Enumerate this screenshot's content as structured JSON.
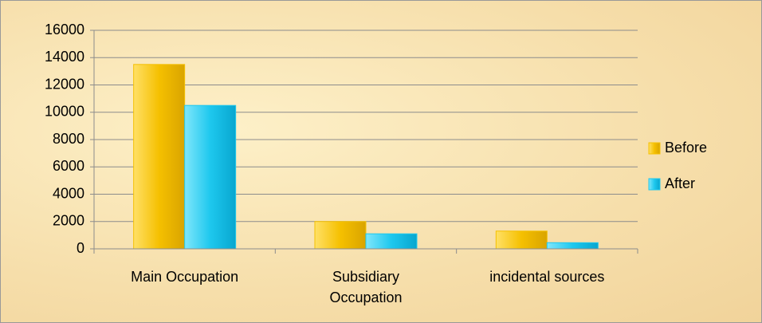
{
  "chart_data": {
    "type": "bar",
    "categories": [
      "Main Occupation",
      "Subsidiary Occupation",
      "incidental sources"
    ],
    "series": [
      {
        "name": "Before",
        "color": "#f5c000",
        "values": [
          13500,
          2000,
          1300
        ]
      },
      {
        "name": "After",
        "color": "#1ec8ee",
        "values": [
          10500,
          1100,
          450
        ]
      }
    ],
    "ylim": [
      0,
      16000
    ],
    "yticks": [
      0,
      2000,
      4000,
      6000,
      8000,
      10000,
      12000,
      14000,
      16000
    ],
    "grid": true,
    "legend": "right"
  }
}
